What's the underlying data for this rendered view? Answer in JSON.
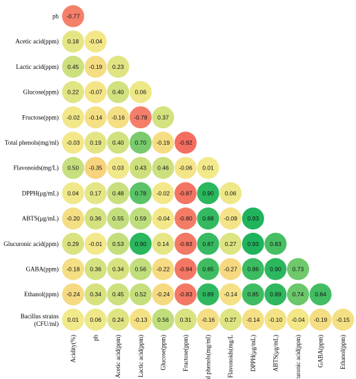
{
  "chart_data": {
    "type": "heatmap",
    "title": "",
    "row_labels": [
      "ph",
      "Acetic acid(ppm)",
      "Lactic acid(ppm)",
      "Glucose(ppm)",
      "Fructose(ppm)",
      "Total phenols(mg/ml)",
      "Flavonoids(mg/L)",
      "DPPH(μg/mL)",
      "ABTS(μg/mL)",
      "Glucuronic acid(ppm)",
      "GABA(ppm)",
      "Ethanol(ppm)",
      "Bacillus strains (CFU/ml)"
    ],
    "col_labels": [
      "Acidity(%)",
      "ph",
      "Acetic acid(ppm)",
      "Lactic acid(ppm)",
      "Glucose(ppm)",
      "Fructose(ppm)",
      "Total phenols(mg/ml)",
      "Flavonoids(mg/L",
      "DPPH(μg/mL)",
      "ABTS(μg/mL)",
      "Glucuronic acid(ppm)",
      "GABA(ppm)",
      "Ethanol(ppm)"
    ],
    "values": [
      [
        "-0.77"
      ],
      [
        "0.18",
        "-0.04"
      ],
      [
        "0.45",
        "-0.19",
        "0.23"
      ],
      [
        "0.22",
        "-0.07",
        "0.40",
        "0.06"
      ],
      [
        "-0.02",
        "-0.14",
        "-0.16",
        "-0.78",
        "0.37"
      ],
      [
        "-0.03",
        "0.19",
        "0.40",
        "0.70",
        "-0.19",
        "-0.92"
      ],
      [
        "0.50",
        "-0.35",
        "0.03",
        "0.43",
        "0.46",
        "-0.06",
        "0.01"
      ],
      [
        "0.04",
        "0.17",
        "0.48",
        "0.78",
        "-0.02",
        "-0.87",
        "0.90",
        "0.06"
      ],
      [
        "-0.20",
        "0.36",
        "0.55",
        "0.59",
        "-0.04",
        "-0.80",
        "0.88",
        "-0.09",
        "0.93"
      ],
      [
        "0.29",
        "-0.01",
        "0.53",
        "0.90",
        "0.14",
        "-0.83",
        "0.87",
        "0.27",
        "0.93",
        "0.83"
      ],
      [
        "-0.18",
        "0.36",
        "0.34",
        "0.56",
        "-0.22",
        "-0.84",
        "0.85",
        "-0.27",
        "0.86",
        "0.90",
        "0.73"
      ],
      [
        "-0.24",
        "0.34",
        "0.45",
        "0.52",
        "-0.24",
        "-0.83",
        "0.89",
        "-0.14",
        "0.85",
        "0.89",
        "0.74",
        "0.84"
      ],
      [
        "0.01",
        "0.06",
        "0.24",
        "-0.13",
        "0.56",
        "0.31",
        "-0.16",
        "0.27",
        "-0.14",
        "-0.10",
        "-0.04",
        "-0.19",
        "-0.15"
      ]
    ],
    "color_scale": {
      "negative_end": "#f36a5e",
      "neutral_low": "#f8cf7a",
      "neutral_high": "#f3e98a",
      "positive_mid": "#b8dc7c",
      "positive_end": "#1fb45c"
    },
    "legend": "none",
    "grid": false
  }
}
